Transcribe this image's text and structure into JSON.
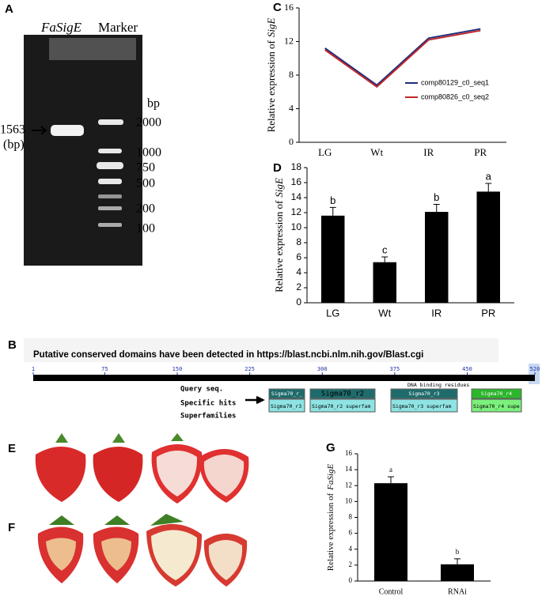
{
  "gel": {
    "panel": "A",
    "lane_labels": [
      "FaSigE",
      "Marker"
    ],
    "unit": "bp",
    "sample_label": [
      "1563",
      "(bp)"
    ],
    "ladder": [
      "2000",
      "1000",
      "750",
      "500",
      "200",
      "100"
    ]
  },
  "domains": {
    "panel": "B",
    "title": "Putative conserved domains have been detected in https://blast.ncbi.nlm.nih.gov/Blast.cgi",
    "ruler": [
      1,
      75,
      150,
      225,
      300,
      375,
      450,
      520
    ],
    "residues_label": "DNA binding residues",
    "row_labels": [
      "Query seq.",
      "Specific hits",
      "Superfamilies"
    ],
    "hits": [
      "Sigma70_r_",
      "Sigma70_r2",
      "Sigma70_r3",
      "Sigma70_r4"
    ],
    "superfamilies": [
      "Sigma70_r3",
      "Sigma70_r2 superfam",
      "Sigma70_r3 superfam",
      "Sigma70_r4 supe"
    ]
  },
  "photos": {
    "panels": [
      "E",
      "F"
    ]
  },
  "chart_data": [
    {
      "type": "line",
      "panel": "C",
      "y_label": [
        "Relative expression of",
        "SigE"
      ],
      "categories": [
        "LG",
        "Wt",
        "IR",
        "PR"
      ],
      "series": [
        {
          "name": "comp80129_c0_seq1",
          "color": "#1f2f7a",
          "values": [
            11.2,
            6.8,
            12.4,
            13.5
          ]
        },
        {
          "name": "comp80826_c0_seq2",
          "color": "#c0282d",
          "values": [
            11.0,
            6.6,
            12.2,
            13.3
          ]
        }
      ],
      "ylim": [
        0,
        16
      ],
      "yticks": [
        0,
        4,
        8,
        12,
        16
      ],
      "legend": "right"
    },
    {
      "type": "bar",
      "panel": "D",
      "y_label": [
        "Relative expression of",
        "SigE"
      ],
      "categories": [
        "LG",
        "Wt",
        "IR",
        "PR"
      ],
      "values": [
        11.6,
        5.4,
        12.1,
        14.8
      ],
      "errors": [
        1.1,
        0.7,
        1.0,
        1.1
      ],
      "annotations": [
        "b",
        "c",
        "b",
        "a"
      ],
      "color": "#000000",
      "ylim": [
        0,
        18
      ],
      "yticks": [
        0,
        2,
        4,
        6,
        8,
        10,
        12,
        14,
        16,
        18
      ]
    },
    {
      "type": "bar",
      "panel": "G",
      "y_label": [
        "Relative expression of",
        "FaSigE"
      ],
      "categories": [
        "Control",
        "RNAi"
      ],
      "values": [
        12.3,
        2.1
      ],
      "errors": [
        0.8,
        0.7
      ],
      "annotations": [
        "a",
        "b"
      ],
      "color": "#000000",
      "ylim": [
        0,
        16
      ],
      "yticks": [
        0,
        2,
        4,
        6,
        8,
        10,
        12,
        14,
        16
      ]
    }
  ]
}
